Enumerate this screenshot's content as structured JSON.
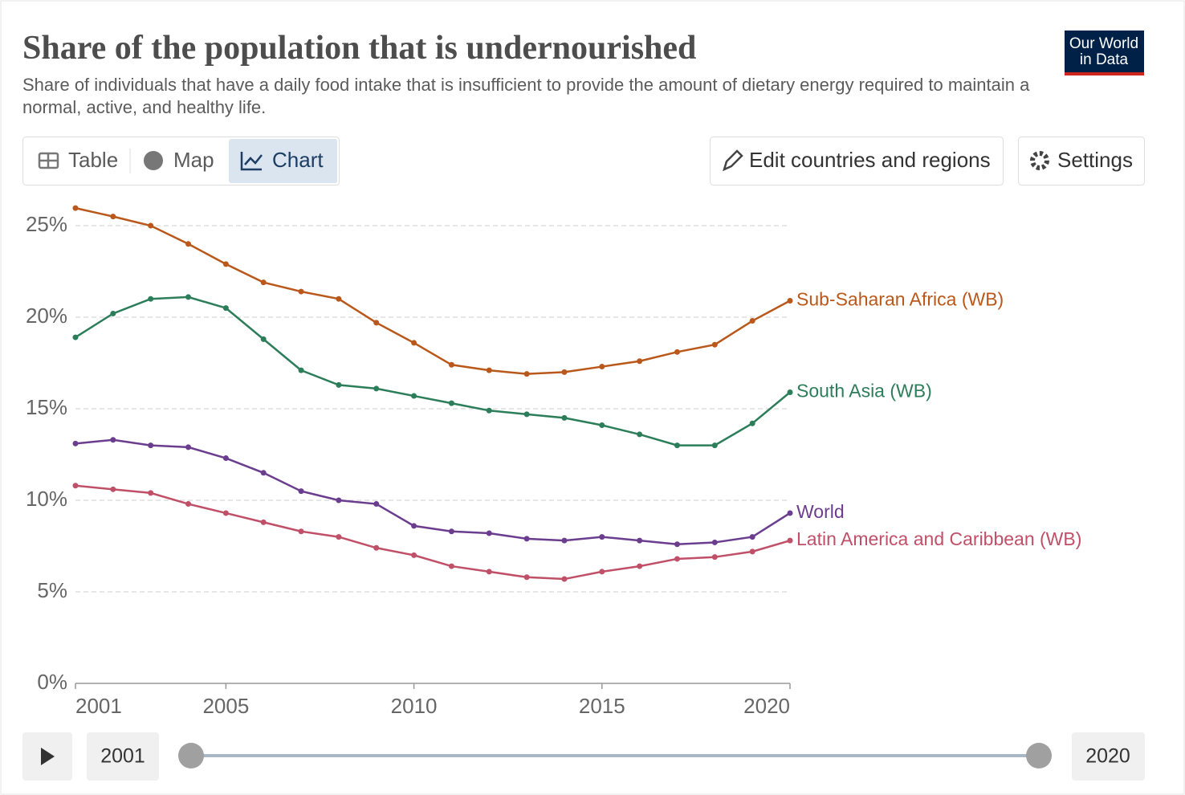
{
  "chart_data": {
    "type": "line",
    "title": "Share of the population that is undernourished",
    "subtitle": "Share of individuals that have a daily food intake that is insufficient to provide the amount of dietary energy required to maintain a normal, active, and healthy life.",
    "x": [
      2001,
      2002,
      2003,
      2004,
      2005,
      2006,
      2007,
      2008,
      2009,
      2010,
      2011,
      2012,
      2013,
      2014,
      2015,
      2016,
      2017,
      2018,
      2019,
      2020
    ],
    "series": [
      {
        "name": "Sub-Saharan Africa (WB)",
        "color": "#b9581a",
        "values": [
          25.96,
          25.5,
          25.0,
          24.0,
          22.9,
          21.9,
          21.4,
          21.0,
          19.7,
          18.6,
          17.4,
          17.1,
          16.9,
          17.0,
          17.3,
          17.6,
          18.1,
          18.5,
          19.8,
          20.9
        ]
      },
      {
        "name": "South Asia (WB)",
        "color": "#2c7d5a",
        "values": [
          18.9,
          20.2,
          21.0,
          21.1,
          20.5,
          18.8,
          17.1,
          16.3,
          16.1,
          15.7,
          15.3,
          14.9,
          14.7,
          14.5,
          14.1,
          13.6,
          13.0,
          13.0,
          14.2,
          15.9
        ]
      },
      {
        "name": "World",
        "color": "#6b3d8f",
        "values": [
          13.1,
          13.3,
          13.0,
          12.9,
          12.3,
          11.5,
          10.5,
          10.0,
          9.8,
          8.6,
          8.3,
          8.2,
          7.9,
          7.8,
          8.0,
          7.8,
          7.6,
          7.7,
          8.0,
          9.3
        ]
      },
      {
        "name": "Latin America and Caribbean (WB)",
        "color": "#c04f68",
        "values": [
          10.8,
          10.6,
          10.4,
          9.8,
          9.3,
          8.8,
          8.3,
          8.0,
          7.4,
          7.0,
          6.4,
          6.1,
          5.8,
          5.7,
          6.1,
          6.4,
          6.8,
          6.9,
          7.2,
          7.8
        ]
      }
    ],
    "xlim": [
      2001,
      2020
    ],
    "xticks": [
      2001,
      2005,
      2010,
      2015,
      2020
    ],
    "ylim": [
      0,
      26
    ],
    "yticks": [
      {
        "value": 0,
        "label": "0%"
      },
      {
        "value": 5,
        "label": "5%"
      },
      {
        "value": 10,
        "label": "10%"
      },
      {
        "value": 15,
        "label": "15%"
      },
      {
        "value": 20,
        "label": "20%"
      },
      {
        "value": 25,
        "label": "25%"
      }
    ],
    "grid": true
  },
  "ui": {
    "logo": [
      "Our World",
      "in Data"
    ],
    "tabs": [
      "Table",
      "Map",
      "Chart"
    ],
    "edit_button": "Edit countries and regions",
    "settings_button": "Settings",
    "timeline": {
      "start": "2001",
      "end": "2020"
    }
  }
}
